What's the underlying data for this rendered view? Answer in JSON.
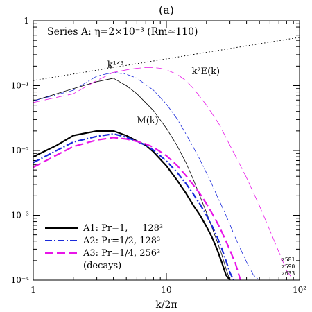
{
  "chart_data": {
    "type": "line",
    "panel_label": "(a)",
    "annotation_text": "Series A: η=2×10⁻³ (Rm≃110)",
    "xlabel": "k/2π",
    "ylabel": "",
    "xscale": "log",
    "yscale": "log",
    "xlim": [
      1,
      100
    ],
    "ylim": [
      0.0001,
      1
    ],
    "x_tick_labels": [
      {
        "value": 1,
        "label": "1"
      },
      {
        "value": 10,
        "label": "10"
      },
      {
        "value": 100,
        "label": "10²"
      }
    ],
    "y_tick_labels": [
      {
        "value": 1,
        "label": "1"
      },
      {
        "value": 0.1,
        "label": "10⁻¹"
      },
      {
        "value": 0.01,
        "label": "10⁻²"
      },
      {
        "value": 0.001,
        "label": "10⁻³"
      },
      {
        "value": 0.0001,
        "label": "10⁻⁴"
      }
    ],
    "curve_labels": [
      {
        "text": "k¹ᐟ³",
        "x": 3.6,
        "y": 0.19
      },
      {
        "text": "k²E(k)",
        "x": 15.5,
        "y": 0.15
      },
      {
        "text": "M(k)",
        "x": 6.0,
        "y": 0.026
      }
    ],
    "reference_line": {
      "name": "k¹ᐟ³",
      "x": [
        1,
        100
      ],
      "y": [
        0.12,
        0.557
      ],
      "color": "#000000",
      "style": "dotted"
    },
    "series": [
      {
        "name": "A1: Pr=1,     128³",
        "color": "#000000",
        "style": "solid",
        "M_k": {
          "x": [
            1,
            1.5,
            2,
            3,
            4,
            5,
            6,
            7,
            8,
            10,
            12,
            14,
            16,
            18,
            20,
            22,
            24,
            26,
            28,
            30
          ],
          "y": [
            0.008,
            0.012,
            0.017,
            0.02,
            0.02,
            0.017,
            0.014,
            0.012,
            0.0095,
            0.0058,
            0.0035,
            0.0022,
            0.0014,
            0.00098,
            0.00067,
            0.00046,
            0.0003,
            0.00019,
            0.00012,
            0.0001
          ]
        },
        "k2E_k": {
          "x": [
            1,
            2,
            3,
            4,
            5,
            6,
            8,
            10,
            12,
            14,
            16,
            18,
            20,
            22,
            24,
            26,
            28,
            30
          ],
          "y": [
            0.058,
            0.09,
            0.115,
            0.13,
            0.1,
            0.075,
            0.041,
            0.022,
            0.012,
            0.0065,
            0.0035,
            0.0019,
            0.0011,
            0.00065,
            0.0004,
            0.00025,
            0.00015,
            0.0001
          ]
        }
      },
      {
        "name": "A2: Pr=1/2, 128³",
        "color": "#1a2adb",
        "style": "dashdot",
        "M_k": {
          "x": [
            1,
            1.5,
            2,
            3,
            4,
            5,
            6,
            7,
            8,
            10,
            12,
            14,
            16,
            18,
            20,
            22,
            24,
            26,
            28,
            30,
            32
          ],
          "y": [
            0.0065,
            0.01,
            0.0135,
            0.0165,
            0.018,
            0.016,
            0.0138,
            0.012,
            0.0101,
            0.0069,
            0.0046,
            0.0031,
            0.0021,
            0.00145,
            0.001,
            0.00069,
            0.00047,
            0.00031,
            0.0002,
            0.00013,
            0.0001
          ]
        },
        "k2E_k": {
          "x": [
            1,
            2,
            3,
            4,
            5,
            6,
            8,
            10,
            12,
            14,
            16,
            18,
            20,
            22,
            24,
            26,
            28,
            30,
            32,
            35,
            40,
            45,
            50
          ],
          "y": [
            0.058,
            0.085,
            0.14,
            0.16,
            0.15,
            0.13,
            0.085,
            0.052,
            0.031,
            0.018,
            0.011,
            0.007,
            0.0045,
            0.003,
            0.002,
            0.0014,
            0.001,
            0.00072,
            0.00052,
            0.00034,
            0.00019,
            0.00012,
            0.0001
          ]
        }
      },
      {
        "name": "A3: Pr=1/4, 256³",
        "color": "#e815e8",
        "style": "dashed",
        "M_k": {
          "x": [
            1,
            1.5,
            2,
            3,
            4,
            5,
            6,
            7,
            8,
            10,
            12,
            14,
            16,
            18,
            20,
            22,
            24,
            26,
            28,
            30,
            33,
            36
          ],
          "y": [
            0.0055,
            0.0085,
            0.0115,
            0.0145,
            0.0158,
            0.015,
            0.0138,
            0.0126,
            0.0112,
            0.0083,
            0.0059,
            0.0041,
            0.0029,
            0.0021,
            0.0015,
            0.00108,
            0.00078,
            0.00056,
            0.0004,
            0.00029,
            0.00018,
            0.0001
          ]
        },
        "k2E_k": {
          "x": [
            1,
            2,
            3,
            4,
            5,
            6,
            7,
            8,
            9,
            10,
            12,
            14,
            16,
            20,
            25,
            30,
            35,
            40,
            50,
            60,
            70,
            80,
            90
          ],
          "y": [
            0.055,
            0.075,
            0.12,
            0.16,
            0.175,
            0.185,
            0.19,
            0.19,
            0.185,
            0.175,
            0.15,
            0.12,
            0.09,
            0.05,
            0.025,
            0.012,
            0.0065,
            0.0038,
            0.0014,
            0.00058,
            0.00027,
            0.00014,
            0.0001
          ]
        }
      }
    ],
    "legend": {
      "placement": "bottom-left",
      "entries": [
        "A1: Pr=1,     128³",
        "A2: Pr=1/2, 128³",
        "A3: Pr=1/4, 256³"
      ],
      "note": "(decays)"
    },
    "corner_labels": [
      "z581",
      "z590",
      "z633"
    ]
  }
}
